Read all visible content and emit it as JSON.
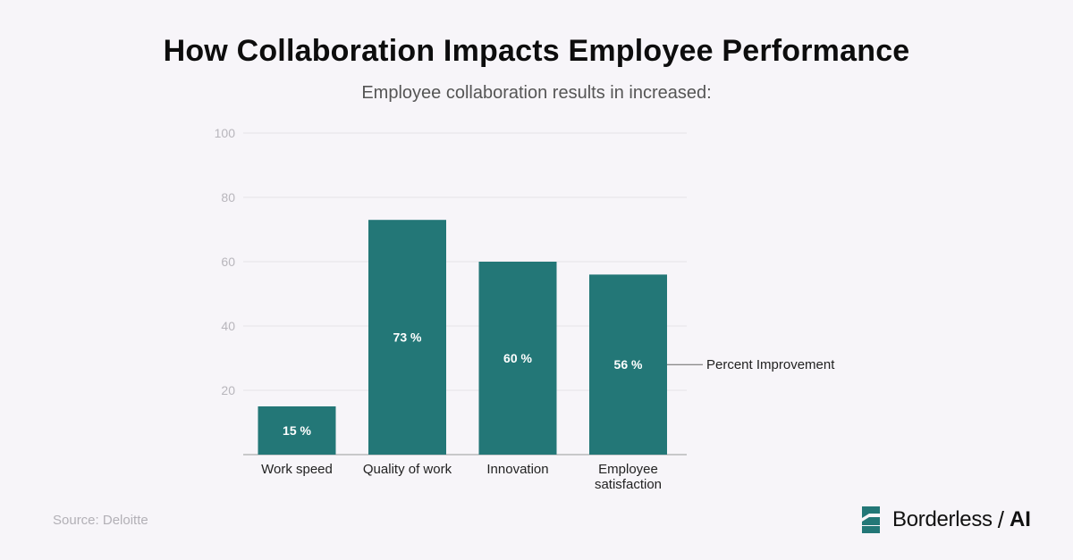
{
  "title": "How Collaboration Impacts Employee Performance",
  "subtitle": "Employee collaboration results in increased:",
  "source": "Source: Deloitte",
  "brand": {
    "name": "Borderless",
    "separator": "/",
    "suffix": "AI",
    "logo_icon": "borderless-logo-icon"
  },
  "colors": {
    "bar": "#237777",
    "grid": "#e6e4e8",
    "axis_label": "#b8b6bc",
    "category_label": "#222222",
    "data_label": "#ffffff"
  },
  "chart_data": {
    "type": "bar",
    "categories": [
      "Work speed",
      "Quality of work",
      "Innovation",
      "Employee satisfaction"
    ],
    "category_label_lines": [
      [
        "Work speed"
      ],
      [
        "Quality of work"
      ],
      [
        "Innovation"
      ],
      [
        "Employee",
        "satisfaction"
      ]
    ],
    "values": [
      15,
      73,
      60,
      56
    ],
    "data_labels": [
      "15 %",
      "73 %",
      "60 %",
      "56 %"
    ],
    "y_ticks": [
      20,
      40,
      60,
      80,
      100
    ],
    "ylim": [
      0,
      100
    ],
    "grid": true,
    "annotation": "Percent Improvement",
    "annotation_target_index": 3
  }
}
